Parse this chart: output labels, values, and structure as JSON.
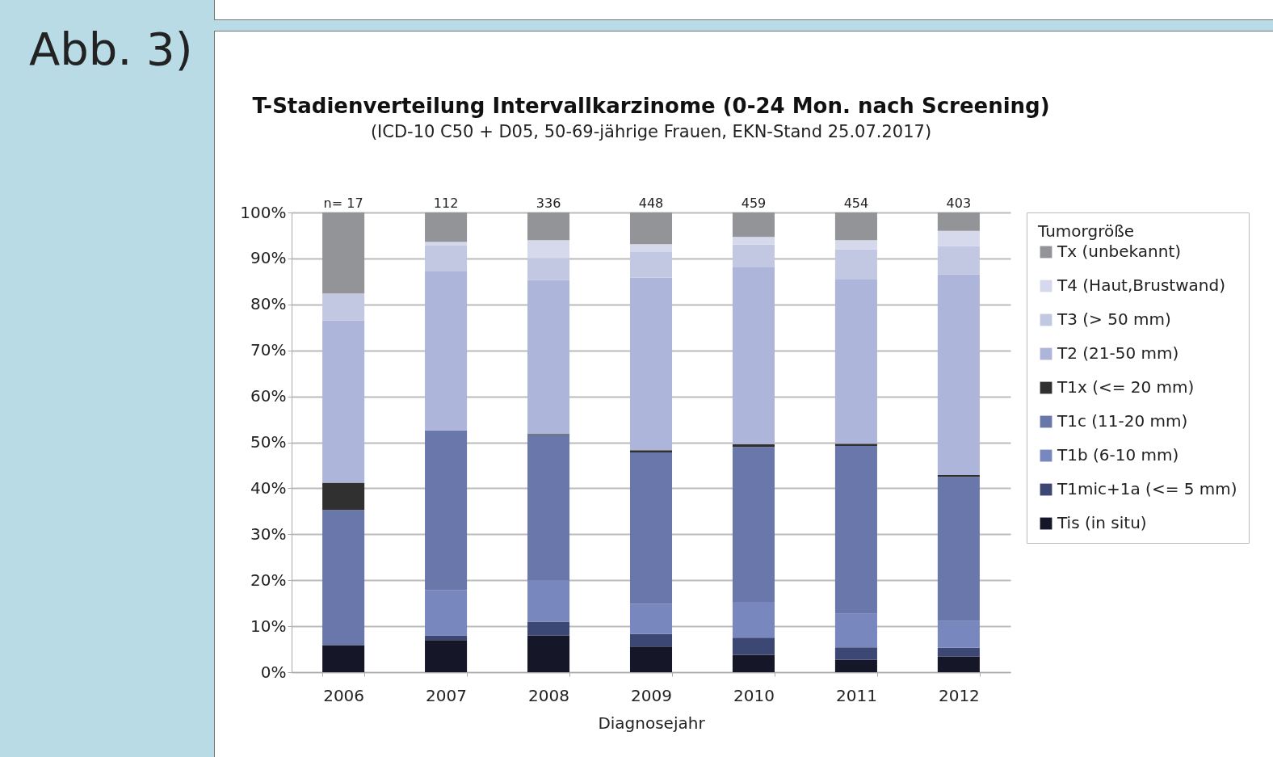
{
  "chart_data": {
    "type": "bar",
    "stacked": true,
    "title": "T-Stadienverteilung Intervallkarzinome (0-24 Mon. nach Screening)",
    "subtitle": "(ICD-10 C50 + D05, 50-69-jährige Frauen, EKN-Stand 25.07.2017)",
    "xlabel": "Diagnosejahr",
    "legend_title": "Tumorgröße",
    "legend": "right",
    "grid": "y",
    "categories": [
      "2006",
      "2007",
      "2008",
      "2009",
      "2010",
      "2011",
      "2012"
    ],
    "ylim": [
      0,
      100
    ],
    "yticks": [
      {
        "value": 0,
        "label": "0%"
      },
      {
        "value": 10,
        "label": "10%"
      },
      {
        "value": 20,
        "label": "20%"
      },
      {
        "value": 30,
        "label": "30%"
      },
      {
        "value": 40,
        "label": "40%"
      },
      {
        "value": 50,
        "label": "50%"
      },
      {
        "value": 60,
        "label": "60%"
      },
      {
        "value": 70,
        "label": "70%"
      },
      {
        "value": 80,
        "label": "80%"
      },
      {
        "value": 90,
        "label": "90%"
      },
      {
        "value": 100,
        "label": "100%"
      }
    ],
    "series": [
      {
        "name": "Tis (in situ)",
        "color": "#161629",
        "values": [
          5.9,
          7.0,
          8.0,
          5.6,
          3.8,
          2.7,
          3.4
        ]
      },
      {
        "name": "T1mic+1a (<= 5 mm)",
        "color": "#3d4773",
        "values": [
          0,
          1.0,
          3.0,
          2.7,
          3.7,
          2.7,
          1.9
        ]
      },
      {
        "name": "T1b (6-10 mm)",
        "color": "#7887be",
        "values": [
          0,
          9.9,
          8.9,
          6.6,
          7.8,
          7.3,
          5.8
        ]
      },
      {
        "name": "T1c (11-20 mm)",
        "color": "#6977aa",
        "values": [
          29.4,
          34.7,
          31.7,
          32.9,
          33.7,
          36.5,
          31.4
        ]
      },
      {
        "name": "T1x (<= 20 mm)",
        "color": "#303030",
        "values": [
          5.9,
          0,
          0.2,
          0.5,
          0.6,
          0.5,
          0.4
        ]
      },
      {
        "name": "T2 (21-50 mm)",
        "color": "#adb5da",
        "values": [
          35.3,
          34.7,
          33.5,
          37.5,
          38.6,
          35.7,
          43.6
        ]
      },
      {
        "name": "T3 (> 50 mm)",
        "color": "#c3c8e2",
        "values": [
          5.9,
          5.5,
          4.8,
          5.6,
          4.8,
          6.6,
          6.2
        ]
      },
      {
        "name": "T4 (Haut,Brustwand)",
        "color": "#d6d9ec",
        "values": [
          0,
          0.8,
          3.9,
          1.7,
          1.7,
          2.0,
          3.3
        ]
      },
      {
        "name": "Tx (unbekannt)",
        "color": "#939498",
        "values": [
          17.6,
          6.4,
          6.0,
          6.9,
          5.3,
          6.0,
          4.0
        ]
      }
    ],
    "annotations": [
      "Abb. 3)",
      {
        "text": "n= 17",
        "x": "2006",
        "y": 100
      },
      {
        "text": "112",
        "x": "2007",
        "y": 100
      },
      {
        "text": "336",
        "x": "2008",
        "y": 100
      },
      {
        "text": "448",
        "x": "2009",
        "y": 100
      },
      {
        "text": "459",
        "x": "2010",
        "y": 100
      },
      {
        "text": "454",
        "x": "2011",
        "y": 100
      },
      {
        "text": "403",
        "x": "2012",
        "y": 100
      }
    ]
  }
}
